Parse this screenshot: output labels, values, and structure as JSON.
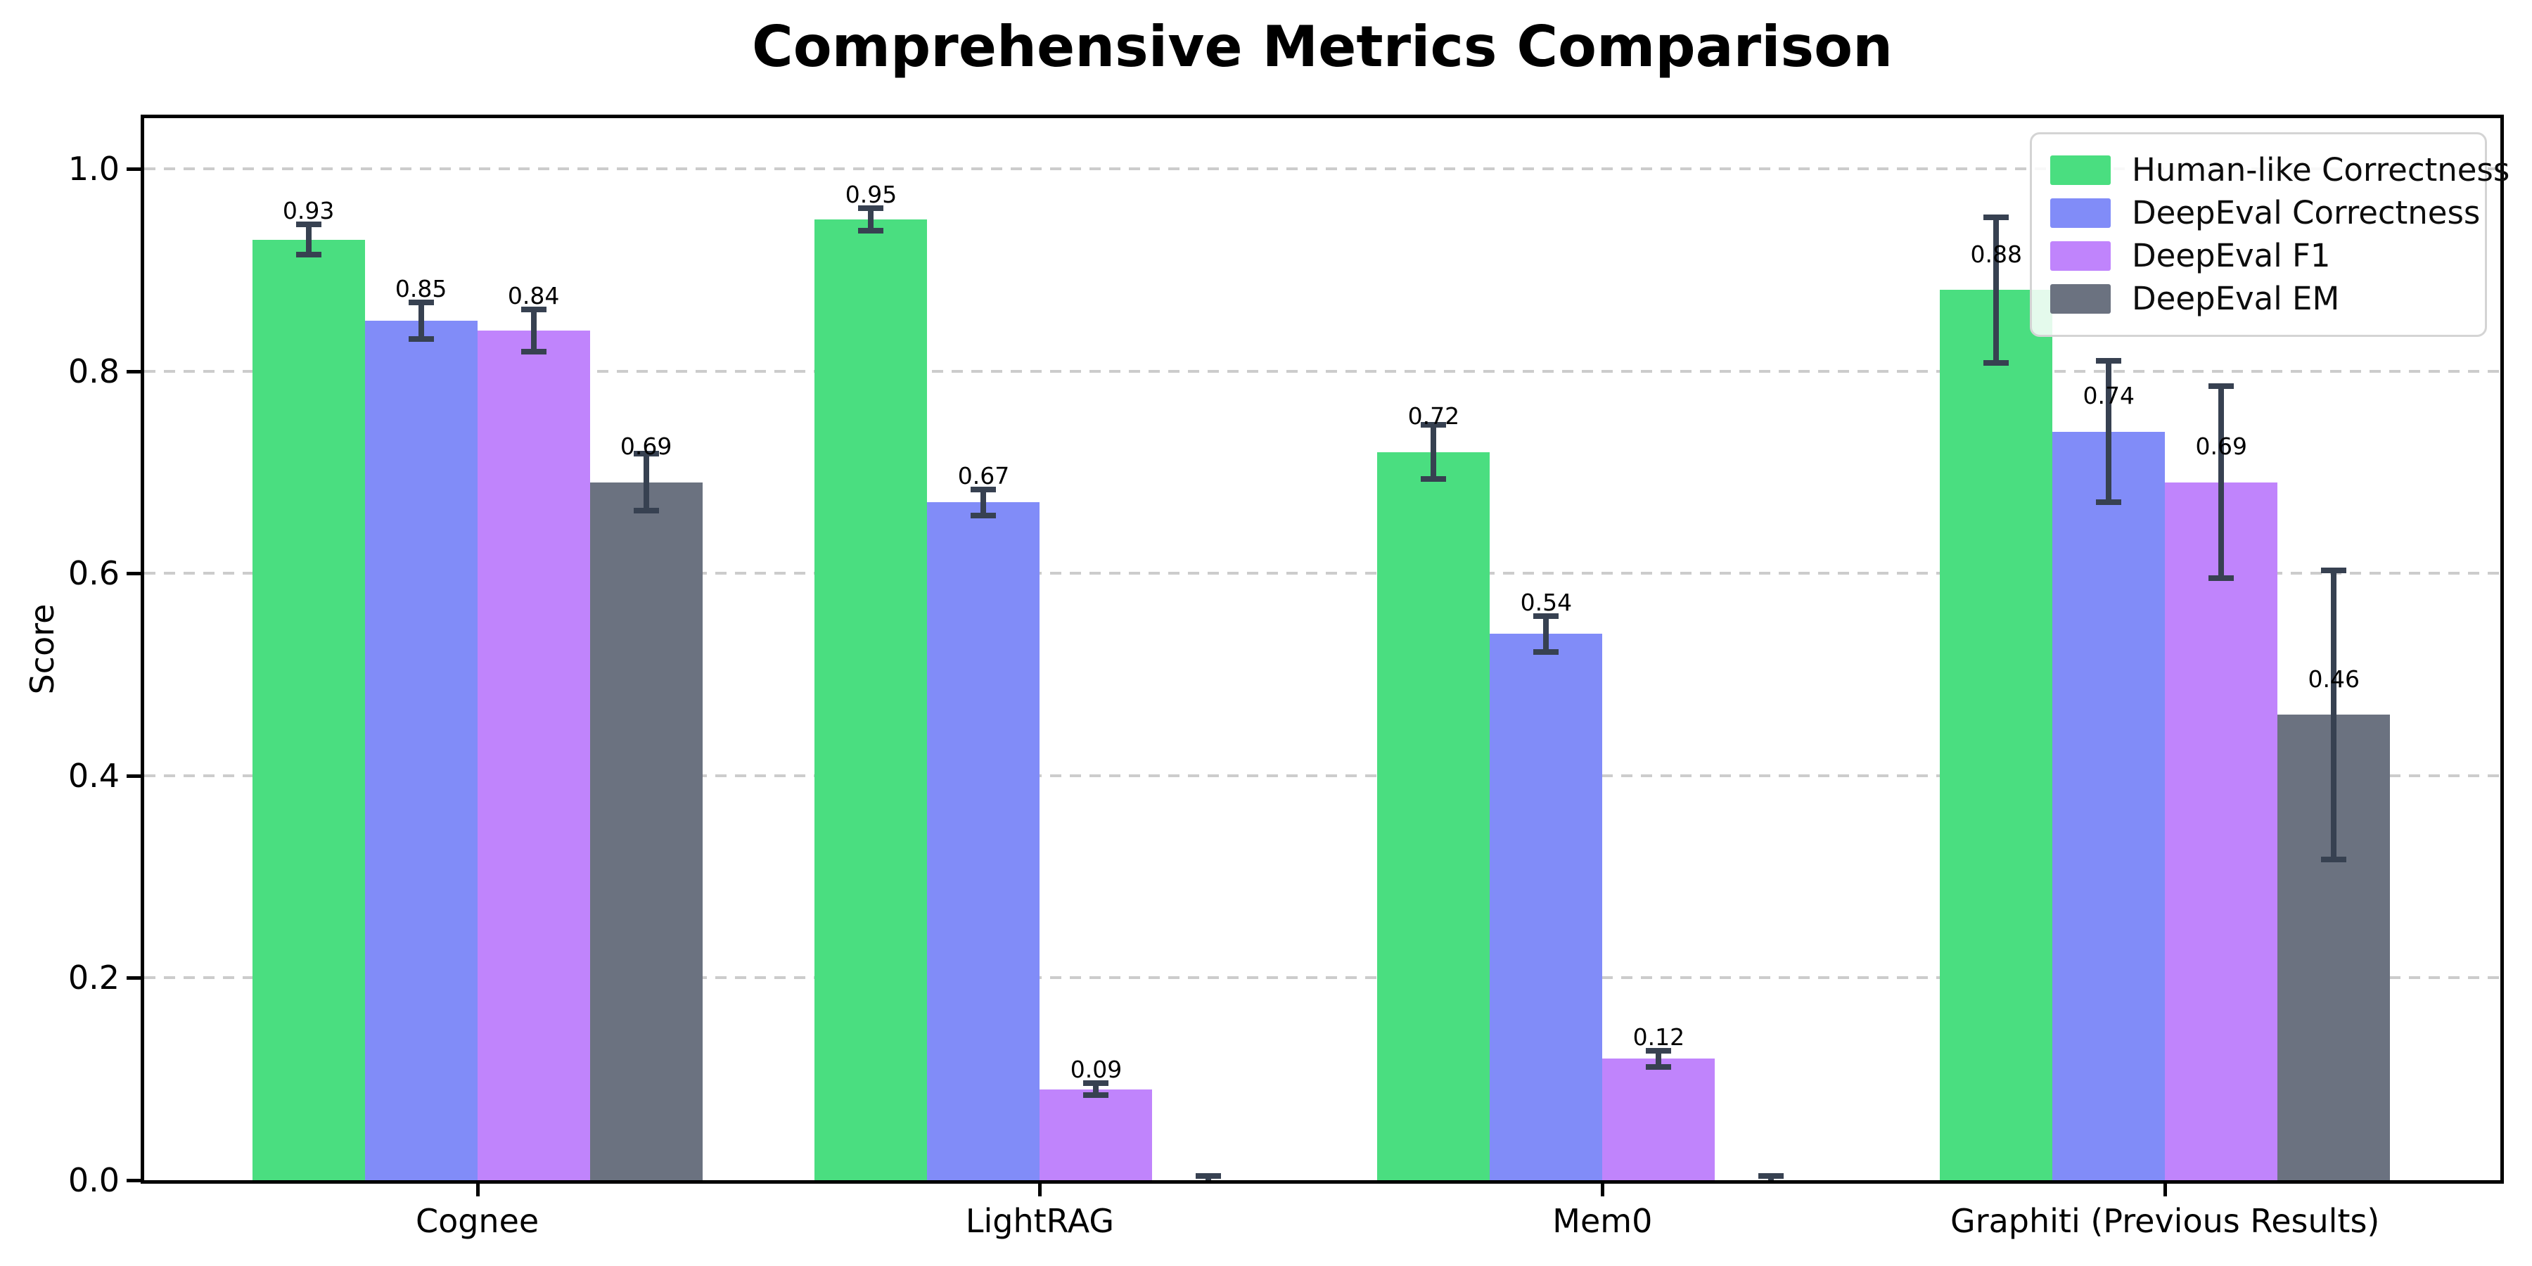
{
  "chart_data": {
    "type": "bar",
    "title": "Comprehensive Metrics Comparison",
    "xlabel": "",
    "ylabel": "Score",
    "ylim": [
      0,
      1.05
    ],
    "yticks": [
      {
        "value": 0.0,
        "label": "0.0"
      },
      {
        "value": 0.2,
        "label": "0.2"
      },
      {
        "value": 0.4,
        "label": "0.4"
      },
      {
        "value": 0.6,
        "label": "0.6"
      },
      {
        "value": 0.8,
        "label": "0.8"
      },
      {
        "value": 1.0,
        "label": "1.0"
      }
    ],
    "grid": "horizontal dashed lines at 0.2 intervals",
    "legend_position": "upper right",
    "categories": [
      "Cognee",
      "LightRAG",
      "Mem0",
      "Graphiti (Previous Results)"
    ],
    "series": [
      {
        "name": "Human-like Correctness",
        "color": "#4ade80",
        "values": [
          0.93,
          0.95,
          0.72,
          0.88
        ],
        "errors": [
          0.015,
          0.011,
          0.027,
          0.072
        ],
        "bar_labels": [
          "0.93",
          "0.95",
          "0.72",
          "0.88"
        ]
      },
      {
        "name": "DeepEval Correctness",
        "color": "#818cf8",
        "values": [
          0.85,
          0.67,
          0.54,
          0.74
        ],
        "errors": [
          0.018,
          0.013,
          0.018,
          0.07
        ],
        "bar_labels": [
          "0.85",
          "0.67",
          "0.54",
          "0.74"
        ]
      },
      {
        "name": "DeepEval F1",
        "color": "#c084fc",
        "values": [
          0.84,
          0.09,
          0.12,
          0.69
        ],
        "errors": [
          0.021,
          0.006,
          0.008,
          0.095
        ],
        "bar_labels": [
          "0.84",
          "0.09",
          "0.12",
          "0.69"
        ]
      },
      {
        "name": "DeepEval EM",
        "color": "#6b7280",
        "values": [
          0.69,
          0.0,
          0.0,
          0.46
        ],
        "errors": [
          0.028,
          0.004,
          0.004,
          0.143
        ],
        "bar_labels": [
          "0.69",
          "",
          "",
          "0.46"
        ]
      }
    ],
    "error_bar_color": "#374151",
    "grid_color": "#cccccc",
    "axis_color": "#000000",
    "background_color": "#ffffff"
  }
}
